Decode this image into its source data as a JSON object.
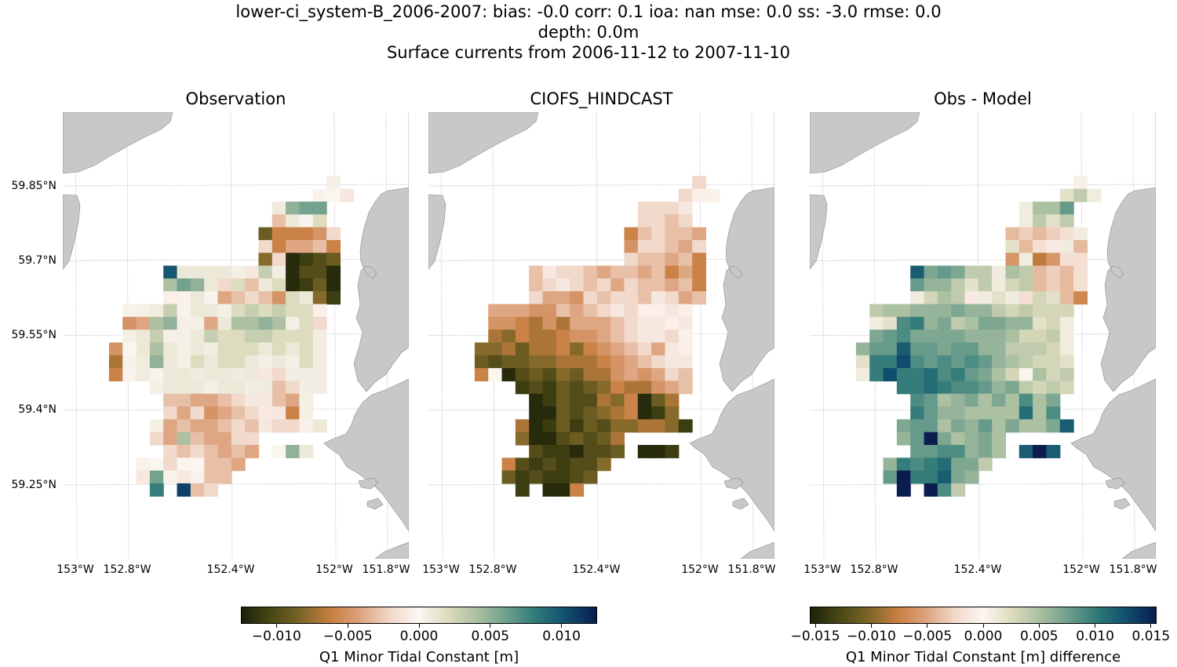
{
  "figure": {
    "title_lines": [
      "lower-ci_system-B_2006-2007: bias: -0.0  corr: 0.1  ioa: nan  mse: 0.0  ss: -3.0  rmse: 0.0",
      "depth: 0.0m",
      "Surface currents from 2006-11-12 to 2007-11-10"
    ]
  },
  "panels": [
    {
      "title": "Observation",
      "field": "obs"
    },
    {
      "title": "CIOFS_HINDCAST",
      "field": "model"
    },
    {
      "title": "Obs - Model",
      "field": "diff"
    }
  ],
  "axes": {
    "lat_labels": [
      "59.85°N",
      "59.7°N",
      "59.55°N",
      "59.4°N",
      "59.25°N"
    ],
    "lat_values": [
      59.85,
      59.7,
      59.55,
      59.4,
      59.25
    ],
    "lon_labels": [
      "153°W",
      "152.8°W",
      "152.4°W",
      "152°W",
      "151.8°W"
    ],
    "lon_values": [
      -153.0,
      -152.8,
      -152.4,
      -152.0,
      -151.8
    ]
  },
  "colors": {
    "land": "#c8c8c8",
    "land_edge": "#8c8c8c",
    "colormap": [
      "#1a2209",
      "#4a4716",
      "#7a6627",
      "#c77e40",
      "#dda27d",
      "#f1d8c9",
      "#fdf6f3",
      "#dcdbbd",
      "#a9bea0",
      "#6c9e8c",
      "#2c7877",
      "#104e6e",
      "#0b1d4e"
    ]
  },
  "colorbars": [
    {
      "label": "Q1 Minor Tidal Constant [m]",
      "min": -0.0125,
      "max": 0.0125,
      "ticks": [
        -0.01,
        -0.005,
        0.0,
        0.005,
        0.01
      ],
      "tick_labels": [
        "−0.010",
        "−0.005",
        "0.000",
        "0.005",
        "0.010"
      ]
    },
    {
      "label": "Q1 Minor Tidal Constant [m] difference",
      "min": -0.0155,
      "max": 0.0155,
      "ticks": [
        -0.015,
        -0.01,
        -0.005,
        0.0,
        0.005,
        0.01,
        0.015
      ],
      "tick_labels": [
        "−0.015",
        "−0.010",
        "−0.005",
        "0.000",
        "0.005",
        "0.010",
        "0.015"
      ]
    }
  ],
  "chart_data": {
    "type": "heatmap",
    "cell_origin_lon": -152.87,
    "cell_origin_lat": 59.87,
    "cell_dlon": 0.0525,
    "cell_dlat": 0.0257,
    "rows": [
      {
        "row": 0,
        "start": 16,
        "obs": [
          0.0005
        ],
        "model": [
          -0.002
        ],
        "diff": [
          0.0005
        ]
      },
      {
        "row": 1,
        "start": 15,
        "obs": [
          0.0003,
          0.0001,
          -0.001
        ],
        "model": [
          -0.002,
          -0.0005,
          0.0003
        ],
        "diff": [
          0.002,
          0.004,
          0.001
        ]
      },
      {
        "row": 2,
        "start": 12,
        "obs": [
          0.0009,
          0.005,
          0.006,
          0.006
        ],
        "model": [
          -0.002,
          -0.002,
          -0.002,
          -0.001
        ],
        "diff": [
          0.001,
          0.005,
          0.005,
          0.008
        ]
      },
      {
        "row": 3,
        "start": 12,
        "obs": [
          -0.003,
          0.001,
          0.0002,
          0.002
        ],
        "model": [
          -0.002,
          -0.002,
          -0.003,
          -0.002
        ],
        "diff": [
          0.001,
          0.004,
          0.002,
          0.004
        ]
      },
      {
        "row": 4,
        "start": 11,
        "obs": [
          -0.009,
          -0.006,
          -0.006,
          -0.006,
          -0.005,
          -0.002
        ],
        "model": [
          -0.006,
          -0.003,
          -0.002,
          -0.003,
          -0.003,
          -0.004
        ],
        "diff": [
          -0.004,
          -0.003,
          -0.004,
          -0.003,
          -0.002,
          0.001
        ]
      },
      {
        "row": 5,
        "start": 11,
        "obs": [
          -0.002,
          -0.006,
          -0.004,
          -0.004,
          -0.003,
          -0.006
        ],
        "model": [
          -0.005,
          -0.002,
          -0.002,
          -0.003,
          -0.004,
          -0.002
        ],
        "diff": [
          0.002,
          -0.004,
          -0.002,
          -0.001,
          0.001,
          -0.004
        ]
      },
      {
        "row": 6,
        "start": 11,
        "obs": [
          -0.008,
          -0.002,
          -0.012,
          -0.011,
          -0.01,
          -0.009
        ],
        "model": [
          -0.002,
          -0.003,
          -0.003,
          -0.004,
          -0.003,
          -0.006
        ],
        "diff": [
          -0.006,
          0.001,
          -0.008,
          -0.006,
          -0.002,
          -0.002
        ]
      },
      {
        "row": 7,
        "start": 4,
        "obs": [
          0.01,
          0.001,
          0.001,
          0.001,
          0.001,
          0.0005,
          -0.001,
          0.003,
          0.0006,
          -0.012,
          -0.01,
          -0.01,
          -0.012
        ],
        "model": [
          -0.003,
          -0.001,
          -0.002,
          -0.002,
          -0.003,
          -0.004,
          -0.003,
          -0.003,
          -0.004,
          -0.003,
          -0.006,
          -0.004,
          -0.006
        ],
        "diff": [
          0.012,
          0.007,
          0.008,
          0.007,
          0.004,
          0.004,
          0.001,
          0.005,
          0.004,
          -0.004,
          -0.003,
          -0.004,
          -0.002
        ]
      },
      {
        "row": 8,
        "start": 4,
        "obs": [
          0.004,
          0.006,
          0.005,
          0.001,
          -0.002,
          0.002,
          -0.003,
          0.001,
          0.002,
          -0.012,
          -0.011,
          -0.009,
          -0.012
        ],
        "model": [
          -0.003,
          -0.002,
          -0.001,
          -0.002,
          -0.003,
          -0.002,
          -0.004,
          -0.002,
          -0.003,
          -0.003,
          -0.004,
          -0.003,
          -0.006
        ],
        "diff": [
          0.008,
          0.006,
          0.006,
          0.004,
          0.002,
          0.004,
          0.001,
          0.003,
          0.004,
          -0.004,
          -0.003,
          -0.004,
          -0.002
        ]
      },
      {
        "row": 9,
        "start": 4,
        "obs": [
          -0.0005,
          0.0003,
          0.001,
          0.0002,
          -0.004,
          -0.003,
          -0.002,
          -0.003,
          -0.005,
          0.002,
          0.001,
          -0.008,
          -0.011
        ],
        "model": [
          -0.002,
          -0.004,
          -0.004,
          -0.005,
          -0.002,
          -0.003,
          -0.002,
          -0.002,
          -0.003,
          -0.001,
          -0.002,
          -0.004,
          -0.003
        ],
        "diff": [
          0.001,
          0.003,
          0.005,
          0.004,
          -0.001,
          0.001,
          0.002,
          0.001,
          -0.002,
          0.003,
          0.002,
          -0.004,
          -0.007
        ]
      },
      {
        "row": 10,
        "start": 1,
        "obs": [
          0.0003,
          0.0005,
          0.0008,
          0.003,
          0.0003,
          0.001,
          0.001,
          0.0005,
          0.002,
          0.003,
          0.002,
          0.003,
          0.002,
          0.002,
          -0.0005
        ],
        "model": [
          -0.004,
          -0.004,
          -0.004,
          -0.005,
          -0.005,
          -0.003,
          -0.004,
          -0.003,
          -0.002,
          -0.001,
          -0.002,
          -0.0005,
          -0.0005,
          -0.001,
          -0.0005
        ],
        "diff": [
          0.004,
          0.005,
          0.005,
          0.006,
          0.006,
          0.006,
          0.007,
          0.006,
          0.006,
          0.004,
          0.003,
          0.004,
          0.003,
          0.003,
          0.003
        ]
      },
      {
        "row": 11,
        "start": 1,
        "obs": [
          -0.005,
          -0.004,
          0.004,
          0.005,
          0.0005,
          0.0005,
          -0.004,
          0.001,
          0.004,
          0.004,
          0.005,
          0.004,
          0.0005,
          0.002,
          -0.002
        ],
        "model": [
          -0.005,
          -0.005,
          -0.006,
          -0.007,
          -0.005,
          -0.007,
          -0.004,
          -0.004,
          -0.004,
          -0.003,
          -0.002,
          -0.001,
          -0.001,
          -0.0005,
          -0.001
        ],
        "diff": [
          0.001,
          0.002,
          0.009,
          0.01,
          0.006,
          0.007,
          0.004,
          0.005,
          0.007,
          0.007,
          0.006,
          0.006,
          0.002,
          0.003,
          0.001
        ]
      },
      {
        "row": 12,
        "start": 1,
        "obs": [
          0.0005,
          0.001,
          0.003,
          0.0005,
          0.0005,
          0.001,
          0.003,
          0.002,
          0.002,
          0.003,
          0.003,
          0.002,
          0.002,
          0.002,
          0.0006
        ],
        "model": [
          -0.007,
          -0.008,
          -0.006,
          -0.007,
          -0.007,
          -0.006,
          -0.005,
          -0.005,
          -0.004,
          -0.003,
          -0.002,
          -0.001,
          -0.001,
          -0.002,
          -0.0005
        ],
        "diff": [
          0.007,
          0.008,
          0.009,
          0.007,
          0.007,
          0.007,
          0.007,
          0.006,
          0.006,
          0.006,
          0.005,
          0.003,
          0.003,
          0.004,
          0.001
        ]
      },
      {
        "row": 13,
        "start": 0,
        "obs": [
          -0.005,
          0.0001,
          0.001,
          0.004,
          0.001,
          0.0005,
          0.001,
          0.0006,
          0.002,
          0.002,
          0.002,
          0.001,
          0.002,
          0.001,
          0.002,
          0.0006
        ],
        "model": [
          -0.008,
          -0.008,
          -0.007,
          -0.009,
          -0.007,
          -0.007,
          -0.006,
          -0.008,
          -0.006,
          -0.005,
          -0.004,
          -0.003,
          -0.002,
          -0.004,
          -0.001,
          -0.0005
        ],
        "diff": [
          0.006,
          0.008,
          0.008,
          0.012,
          0.008,
          0.008,
          0.007,
          0.008,
          0.008,
          0.006,
          0.006,
          0.004,
          0.004,
          0.004,
          0.003,
          0.001
        ]
      },
      {
        "row": 14,
        "start": 0,
        "obs": [
          -0.007,
          0.0003,
          0.0008,
          0.005,
          0.001,
          0.0005,
          0.002,
          0.001,
          0.002,
          0.002,
          0.001,
          0.0005,
          0.001,
          0.0005,
          0.002,
          0.0006
        ],
        "model": [
          -0.009,
          -0.01,
          -0.009,
          -0.009,
          -0.008,
          -0.008,
          -0.007,
          -0.007,
          -0.007,
          -0.006,
          -0.005,
          -0.004,
          -0.003,
          -0.002,
          -0.001,
          -0.001
        ],
        "diff": [
          0.002,
          0.01,
          0.01,
          0.013,
          0.009,
          0.008,
          0.009,
          0.008,
          0.009,
          0.008,
          0.006,
          0.005,
          0.004,
          0.003,
          0.003,
          0.002
        ]
      },
      {
        "row": 15,
        "start": 0,
        "obs": [
          -0.006,
          0.0002,
          0.0008,
          0.0003,
          0.001,
          0.001,
          0.0008,
          0.001,
          0.001,
          0.0008,
          0.001,
          -0.001,
          -0.002,
          0.0006,
          0.0006,
          0.0006
        ],
        "model": [
          -0.006,
          0.0001,
          -0.012,
          -0.01,
          -0.009,
          -0.01,
          -0.008,
          -0.009,
          -0.007,
          -0.007,
          -0.005,
          -0.004,
          -0.005,
          -0.004,
          -0.002,
          -0.003
        ],
        "diff": [
          0.001,
          0.01,
          0.013,
          0.01,
          0.01,
          0.011,
          0.009,
          0.01,
          0.008,
          0.007,
          0.005,
          0.003,
          0.0002,
          0.005,
          0.003,
          0.004
        ]
      },
      {
        "row": 16,
        "start": 3,
        "obs": [
          0.0005,
          0.001,
          0.001,
          0.001,
          0.0005,
          0.001,
          0.001,
          0.0006,
          0.0008,
          -0.003,
          -0.002,
          0.0006,
          0.0006
        ],
        "model": [
          -0.011,
          -0.01,
          -0.011,
          -0.009,
          -0.01,
          -0.009,
          -0.008,
          -0.006,
          -0.007,
          -0.007,
          -0.005,
          -0.004,
          -0.003
        ],
        "diff": [
          0.01,
          0.01,
          0.011,
          0.01,
          0.009,
          0.009,
          0.008,
          0.006,
          0.007,
          0.004,
          0.003,
          0.004,
          0.003
        ]
      },
      {
        "row": 17,
        "start": 4,
        "obs": [
          -0.003,
          -0.003,
          -0.004,
          -0.004,
          -0.003,
          -0.002,
          -0.001,
          -0.001,
          -0.003,
          -0.004,
          0.0005
        ],
        "model": [
          -0.012,
          -0.011,
          -0.009,
          -0.01,
          -0.01,
          -0.007,
          -0.008,
          -0.006,
          -0.012,
          -0.009,
          -0.007
        ],
        "diff": [
          0.009,
          0.008,
          0.005,
          0.006,
          0.007,
          0.005,
          0.007,
          0.005,
          0.009,
          0.005,
          0.007
        ]
      },
      {
        "row": 18,
        "start": 4,
        "obs": [
          -0.002,
          -0.004,
          -0.002,
          -0.005,
          -0.004,
          -0.003,
          -0.002,
          -0.0008,
          -0.001,
          -0.006,
          0.0005
        ],
        "model": [
          -0.012,
          -0.012,
          -0.009,
          -0.01,
          -0.009,
          -0.008,
          -0.007,
          -0.006,
          -0.012,
          -0.011,
          -0.008
        ],
        "diff": [
          0.01,
          0.008,
          0.006,
          0.006,
          0.005,
          0.005,
          0.005,
          0.005,
          0.011,
          0.005,
          0.009
        ]
      },
      {
        "row": 19,
        "start": 3,
        "obs": [
          0.0005,
          -0.004,
          -0.003,
          -0.004,
          -0.004,
          -0.003,
          -0.002,
          -0.003,
          -0.001,
          -0.002,
          -0.002,
          -0.0005,
          0.001
        ],
        "model": [
          -0.007,
          -0.012,
          -0.011,
          -0.009,
          -0.011,
          -0.009,
          -0.01,
          -0.008,
          -0.008,
          -0.007,
          -0.007,
          -0.008,
          -0.011
        ],
        "diff": [
          0.007,
          0.008,
          0.008,
          0.005,
          0.007,
          0.006,
          0.008,
          0.005,
          0.007,
          0.005,
          0.005,
          0.007,
          0.012
        ]
      },
      {
        "row": 20,
        "start": 3,
        "obs": [
          -0.002,
          -0.004,
          0.004,
          -0.003,
          -0.004,
          -0.004,
          -0.002,
          -0.002
        ],
        "model": [
          -0.008,
          -0.012,
          -0.012,
          -0.01,
          -0.009,
          -0.01,
          -0.009,
          -0.007
        ],
        "diff": [
          0.006,
          0.008,
          0.016,
          0.007,
          0.005,
          0.006,
          0.007,
          0.005
        ]
      },
      {
        "row": 21,
        "start": 4,
        "obs": [
          -0.002,
          -0.003,
          -0.002,
          -0.003,
          -0.004,
          -0.003,
          -0.004
        ],
        "model": [
          -0.01,
          -0.011,
          -0.011,
          -0.012,
          -0.01,
          -0.01,
          -0.009
        ],
        "diff": [
          0.008,
          0.008,
          0.009,
          0.009,
          0.006,
          0.007,
          0.005
        ]
      },
      {
        "row": 21,
        "start": 12,
        "obs": [
          0.0001,
          0.005,
          0.001
        ],
        "model": [
          -0.012,
          -0.012,
          -0.011
        ],
        "diff": [
          0.012,
          0.016,
          0.012
        ]
      },
      {
        "row": 22,
        "start": 2,
        "obs": [
          0.0003,
          0.0001,
          -0.002,
          0.0001,
          0.0001,
          -0.003,
          -0.003,
          -0.004
        ],
        "model": [
          -0.006,
          -0.01,
          -0.011,
          -0.01,
          -0.011,
          -0.01,
          -0.01,
          -0.008
        ],
        "diff": [
          0.006,
          0.01,
          0.009,
          0.01,
          0.011,
          0.007,
          0.007,
          0.004
        ]
      },
      {
        "row": 23,
        "start": 2,
        "obs": [
          -0.001,
          0.006,
          0.0003,
          -0.001,
          0.0003,
          -0.003,
          -0.003
        ],
        "model": [
          -0.009,
          -0.011,
          -0.01,
          -0.011,
          -0.011,
          -0.01,
          -0.009
        ],
        "diff": [
          0.008,
          0.016,
          0.01,
          0.01,
          0.012,
          0.007,
          0.006
        ]
      },
      {
        "row": 24,
        "start": 3,
        "obs": [
          0.008
        ],
        "model": [
          -0.011
        ],
        "diff": [
          0.016
        ]
      },
      {
        "row": 24,
        "start": 5,
        "obs": [
          0.011,
          -0.003,
          -0.002
        ],
        "model": [
          -0.012,
          -0.012,
          -0.006
        ],
        "diff": [
          0.016,
          0.009,
          0.004
        ]
      }
    ]
  }
}
